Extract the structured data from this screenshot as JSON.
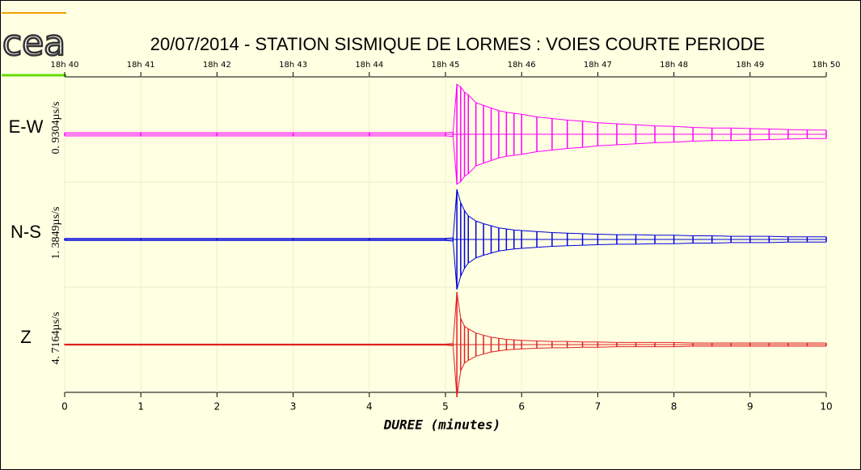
{
  "chart_data": {
    "type": "seismogram",
    "logo_text": "cea",
    "title": "20/07/2014  -  STATION SISMIQUE DE LORMES : VOIES COURTE PERIODE",
    "xlabel": "DUREE (minutes)",
    "xlim": [
      0,
      10
    ],
    "xticks": [
      0,
      1,
      2,
      3,
      4,
      5,
      6,
      7,
      8,
      9,
      10
    ],
    "x2ticks": [
      {
        "value": 0,
        "label": "18h 40"
      },
      {
        "value": 1,
        "label": "18h 41"
      },
      {
        "value": 2,
        "label": "18h 42"
      },
      {
        "value": 3,
        "label": "18h 43"
      },
      {
        "value": 4,
        "label": "18h 44"
      },
      {
        "value": 5,
        "label": "18h 45"
      },
      {
        "value": 6,
        "label": "18h 46"
      },
      {
        "value": 7,
        "label": "18h 47"
      },
      {
        "value": 8,
        "label": "18h 48"
      },
      {
        "value": 9,
        "label": "18h 49"
      },
      {
        "value": 10,
        "label": "18h 50"
      }
    ],
    "grid": true,
    "x": [
      0,
      1,
      2,
      3,
      4,
      5,
      5.1,
      5.15,
      5.2,
      5.25,
      5.3,
      5.4,
      5.5,
      5.6,
      5.7,
      5.8,
      5.9,
      6,
      6.2,
      6.4,
      6.6,
      6.8,
      7,
      7.25,
      7.5,
      7.75,
      8,
      8.25,
      8.5,
      8.75,
      9,
      9.25,
      9.5,
      9.75,
      10
    ],
    "series": [
      {
        "name": "E-W",
        "color": "#ff00ff",
        "scale_label": "0. 9304µs/s",
        "values": [
          0.03,
          0.03,
          0.03,
          0.03,
          0.03,
          0.03,
          0.04,
          0.95,
          0.9,
          0.8,
          0.75,
          0.6,
          0.55,
          0.5,
          0.45,
          0.42,
          0.4,
          0.38,
          0.33,
          0.3,
          0.27,
          0.25,
          0.22,
          0.2,
          0.18,
          0.16,
          0.15,
          0.13,
          0.12,
          0.12,
          0.11,
          0.1,
          0.09,
          0.08,
          0.08
        ]
      },
      {
        "name": "N-S",
        "color": "#0000dd",
        "scale_label": "1. 3849µs/s",
        "values": [
          0.02,
          0.02,
          0.02,
          0.02,
          0.02,
          0.02,
          0.03,
          0.95,
          0.7,
          0.55,
          0.45,
          0.35,
          0.3,
          0.26,
          0.22,
          0.2,
          0.18,
          0.17,
          0.15,
          0.13,
          0.12,
          0.11,
          0.1,
          0.09,
          0.09,
          0.08,
          0.08,
          0.07,
          0.07,
          0.06,
          0.06,
          0.06,
          0.05,
          0.05,
          0.05
        ]
      },
      {
        "name": "Z",
        "color": "#e02020",
        "scale_label": "4. 7164µs/s",
        "values": [
          0.01,
          0.01,
          0.01,
          0.01,
          0.01,
          0.01,
          0.02,
          1.0,
          0.5,
          0.35,
          0.3,
          0.22,
          0.18,
          0.14,
          0.12,
          0.1,
          0.09,
          0.08,
          0.07,
          0.06,
          0.06,
          0.05,
          0.05,
          0.04,
          0.04,
          0.04,
          0.04,
          0.03,
          0.03,
          0.03,
          0.03,
          0.03,
          0.03,
          0.03,
          0.03
        ]
      }
    ]
  }
}
